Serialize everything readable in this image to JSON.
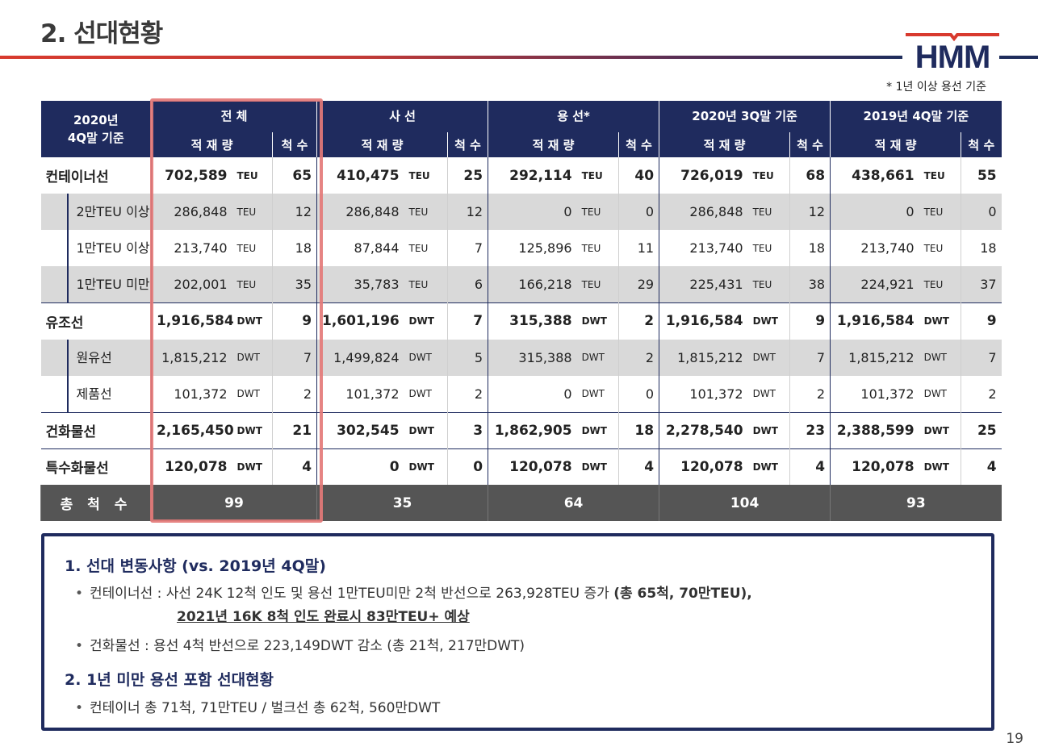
{
  "page_title": "2. 선대현황",
  "brand": {
    "logo_text": "HMM",
    "accent_red": "#d83a2e",
    "navy": "#1f2b5e"
  },
  "footnote": "* 1년 이상 용선 기준",
  "table": {
    "corner_line1": "2020년",
    "corner_line2": "4Q말 기준",
    "groups": [
      "전  체",
      "사  선",
      "용  선*",
      "2020년 3Q말 기준",
      "2019년 4Q말 기준"
    ],
    "sub_capacity": "적 재 량",
    "sub_count": "척 수",
    "rows": [
      {
        "label": "컨테이너선",
        "unit": "TEU",
        "cells": [
          [
            "702,589",
            "65"
          ],
          [
            "410,475",
            "25"
          ],
          [
            "292,114",
            "40"
          ],
          [
            "726,019",
            "68"
          ],
          [
            "438,661",
            "55"
          ]
        ]
      },
      {
        "label": "2만TEU 이상",
        "unit": "TEU",
        "cells": [
          [
            "286,848",
            "12"
          ],
          [
            "286,848",
            "12"
          ],
          [
            "0",
            "0"
          ],
          [
            "286,848",
            "12"
          ],
          [
            "0",
            "0"
          ]
        ]
      },
      {
        "label": "1만TEU 이상",
        "unit": "TEU",
        "cells": [
          [
            "213,740",
            "18"
          ],
          [
            "87,844",
            "7"
          ],
          [
            "125,896",
            "11"
          ],
          [
            "213,740",
            "18"
          ],
          [
            "213,740",
            "18"
          ]
        ]
      },
      {
        "label": "1만TEU 미만",
        "unit": "TEU",
        "cells": [
          [
            "202,001",
            "35"
          ],
          [
            "35,783",
            "6"
          ],
          [
            "166,218",
            "29"
          ],
          [
            "225,431",
            "38"
          ],
          [
            "224,921",
            "37"
          ]
        ]
      },
      {
        "label": "유조선",
        "unit": "DWT",
        "cells": [
          [
            "1,916,584",
            "9"
          ],
          [
            "1,601,196",
            "7"
          ],
          [
            "315,388",
            "2"
          ],
          [
            "1,916,584",
            "9"
          ],
          [
            "1,916,584",
            "9"
          ]
        ]
      },
      {
        "label": "원유선",
        "unit": "DWT",
        "cells": [
          [
            "1,815,212",
            "7"
          ],
          [
            "1,499,824",
            "5"
          ],
          [
            "315,388",
            "2"
          ],
          [
            "1,815,212",
            "7"
          ],
          [
            "1,815,212",
            "7"
          ]
        ]
      },
      {
        "label": "제품선",
        "unit": "DWT",
        "cells": [
          [
            "101,372",
            "2"
          ],
          [
            "101,372",
            "2"
          ],
          [
            "0",
            "0"
          ],
          [
            "101,372",
            "2"
          ],
          [
            "101,372",
            "2"
          ]
        ]
      },
      {
        "label": "건화물선",
        "unit": "DWT",
        "cells": [
          [
            "2,165,450",
            "21"
          ],
          [
            "302,545",
            "3"
          ],
          [
            "1,862,905",
            "18"
          ],
          [
            "2,278,540",
            "23"
          ],
          [
            "2,388,599",
            "25"
          ]
        ]
      },
      {
        "label": "특수화물선",
        "unit": "DWT",
        "cells": [
          [
            "120,078",
            "4"
          ],
          [
            "0",
            "0"
          ],
          [
            "120,078",
            "4"
          ],
          [
            "120,078",
            "4"
          ],
          [
            "120,078",
            "4"
          ]
        ]
      }
    ],
    "total_label": "총 척 수",
    "totals": [
      "99",
      "35",
      "64",
      "104",
      "93"
    ]
  },
  "notes": {
    "h1": "1. 선대 변동사항 (vs. 2019년 4Q말)",
    "b1_text": "컨테이너선 : 사선 24K 12척 인도 및 용선 1만TEU미만 2척 반선으로 263,928TEU 증가 ",
    "b1_bold": "(총 65척, 70만TEU),",
    "b1_cont": "2021년 16K 8척 인도 완료시 83만TEU+ 예상",
    "b2_text": "건화물선 : 용선 4척 반선으로 223,149DWT 감소 (총 21척, 217만DWT)",
    "h2": "2. 1년 미만 용선 포함 선대현황",
    "b3_text": "컨테이너 총 71척, 71만TEU / 벌크선 총 62척, 560만DWT",
    "bullet_char": "•"
  },
  "page_number": "19"
}
